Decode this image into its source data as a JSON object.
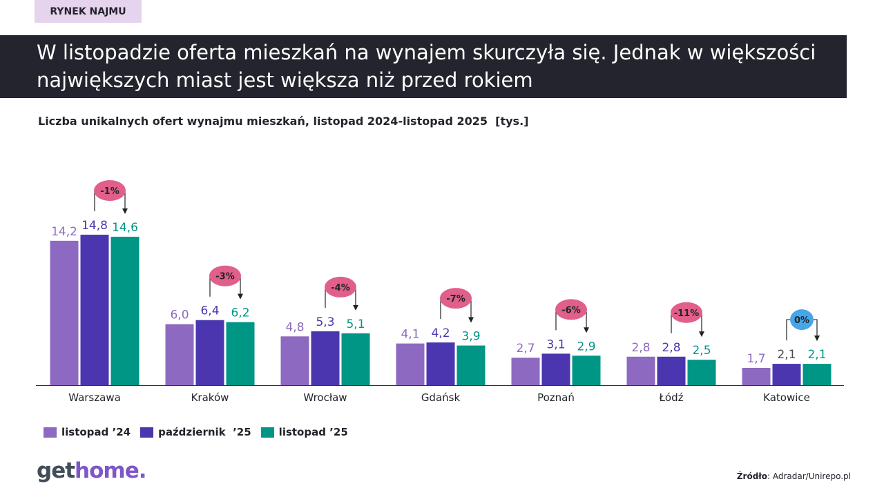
{
  "tag": "RYNEK NAJMU",
  "headline": "W listopadzie oferta mieszkań na wynajem skurczyła się. Jednak w większości największych miast jest większa niż przed rokiem",
  "chart_data": {
    "type": "bar",
    "title": "Liczba unikalnych ofert wynajmu mieszkań, listopad 2024-listopad 2025  [tys.]",
    "categories": [
      "Warszawa",
      "Kraków",
      "Wrocław",
      "Gdańsk",
      "Poznań",
      "Łódź",
      "Katowice"
    ],
    "series": [
      {
        "name": "listopad ’24",
        "color": "#8e69c1",
        "values": [
          14.2,
          6.0,
          4.8,
          4.1,
          2.7,
          2.8,
          1.7
        ],
        "labels": [
          "14,2",
          "6,0",
          "4,8",
          "4,1",
          "2,7",
          "2,8",
          "1,7"
        ]
      },
      {
        "name": "październik  ’25",
        "color": "#4b36b0",
        "values": [
          14.8,
          6.4,
          5.3,
          4.2,
          3.1,
          2.8,
          2.1
        ],
        "labels": [
          "14,8",
          "6,4",
          "5,3",
          "4,2",
          "3,1",
          "2,8",
          "2,1"
        ]
      },
      {
        "name": "listopad ’25",
        "color": "#009686",
        "values": [
          14.6,
          6.2,
          5.1,
          3.9,
          2.9,
          2.5,
          2.1
        ],
        "labels": [
          "14,6",
          "6,2",
          "5,1",
          "3,9",
          "2,9",
          "2,5",
          "2,1"
        ]
      }
    ],
    "change_labels": [
      "-1%",
      "-3%",
      "-4%",
      "-7%",
      "-6%",
      "-11%",
      "0%"
    ],
    "change_colors": {
      "negative": "#e0608a",
      "zero": "#45a6e8"
    },
    "ylim": [
      0,
      15
    ],
    "grid": false,
    "legend": "bottom-left"
  },
  "footer": {
    "logo": {
      "part1": "get",
      "part2": "home."
    },
    "source_label": "Źródło",
    "source_value": ": Adradar/Unirepo.pl"
  }
}
